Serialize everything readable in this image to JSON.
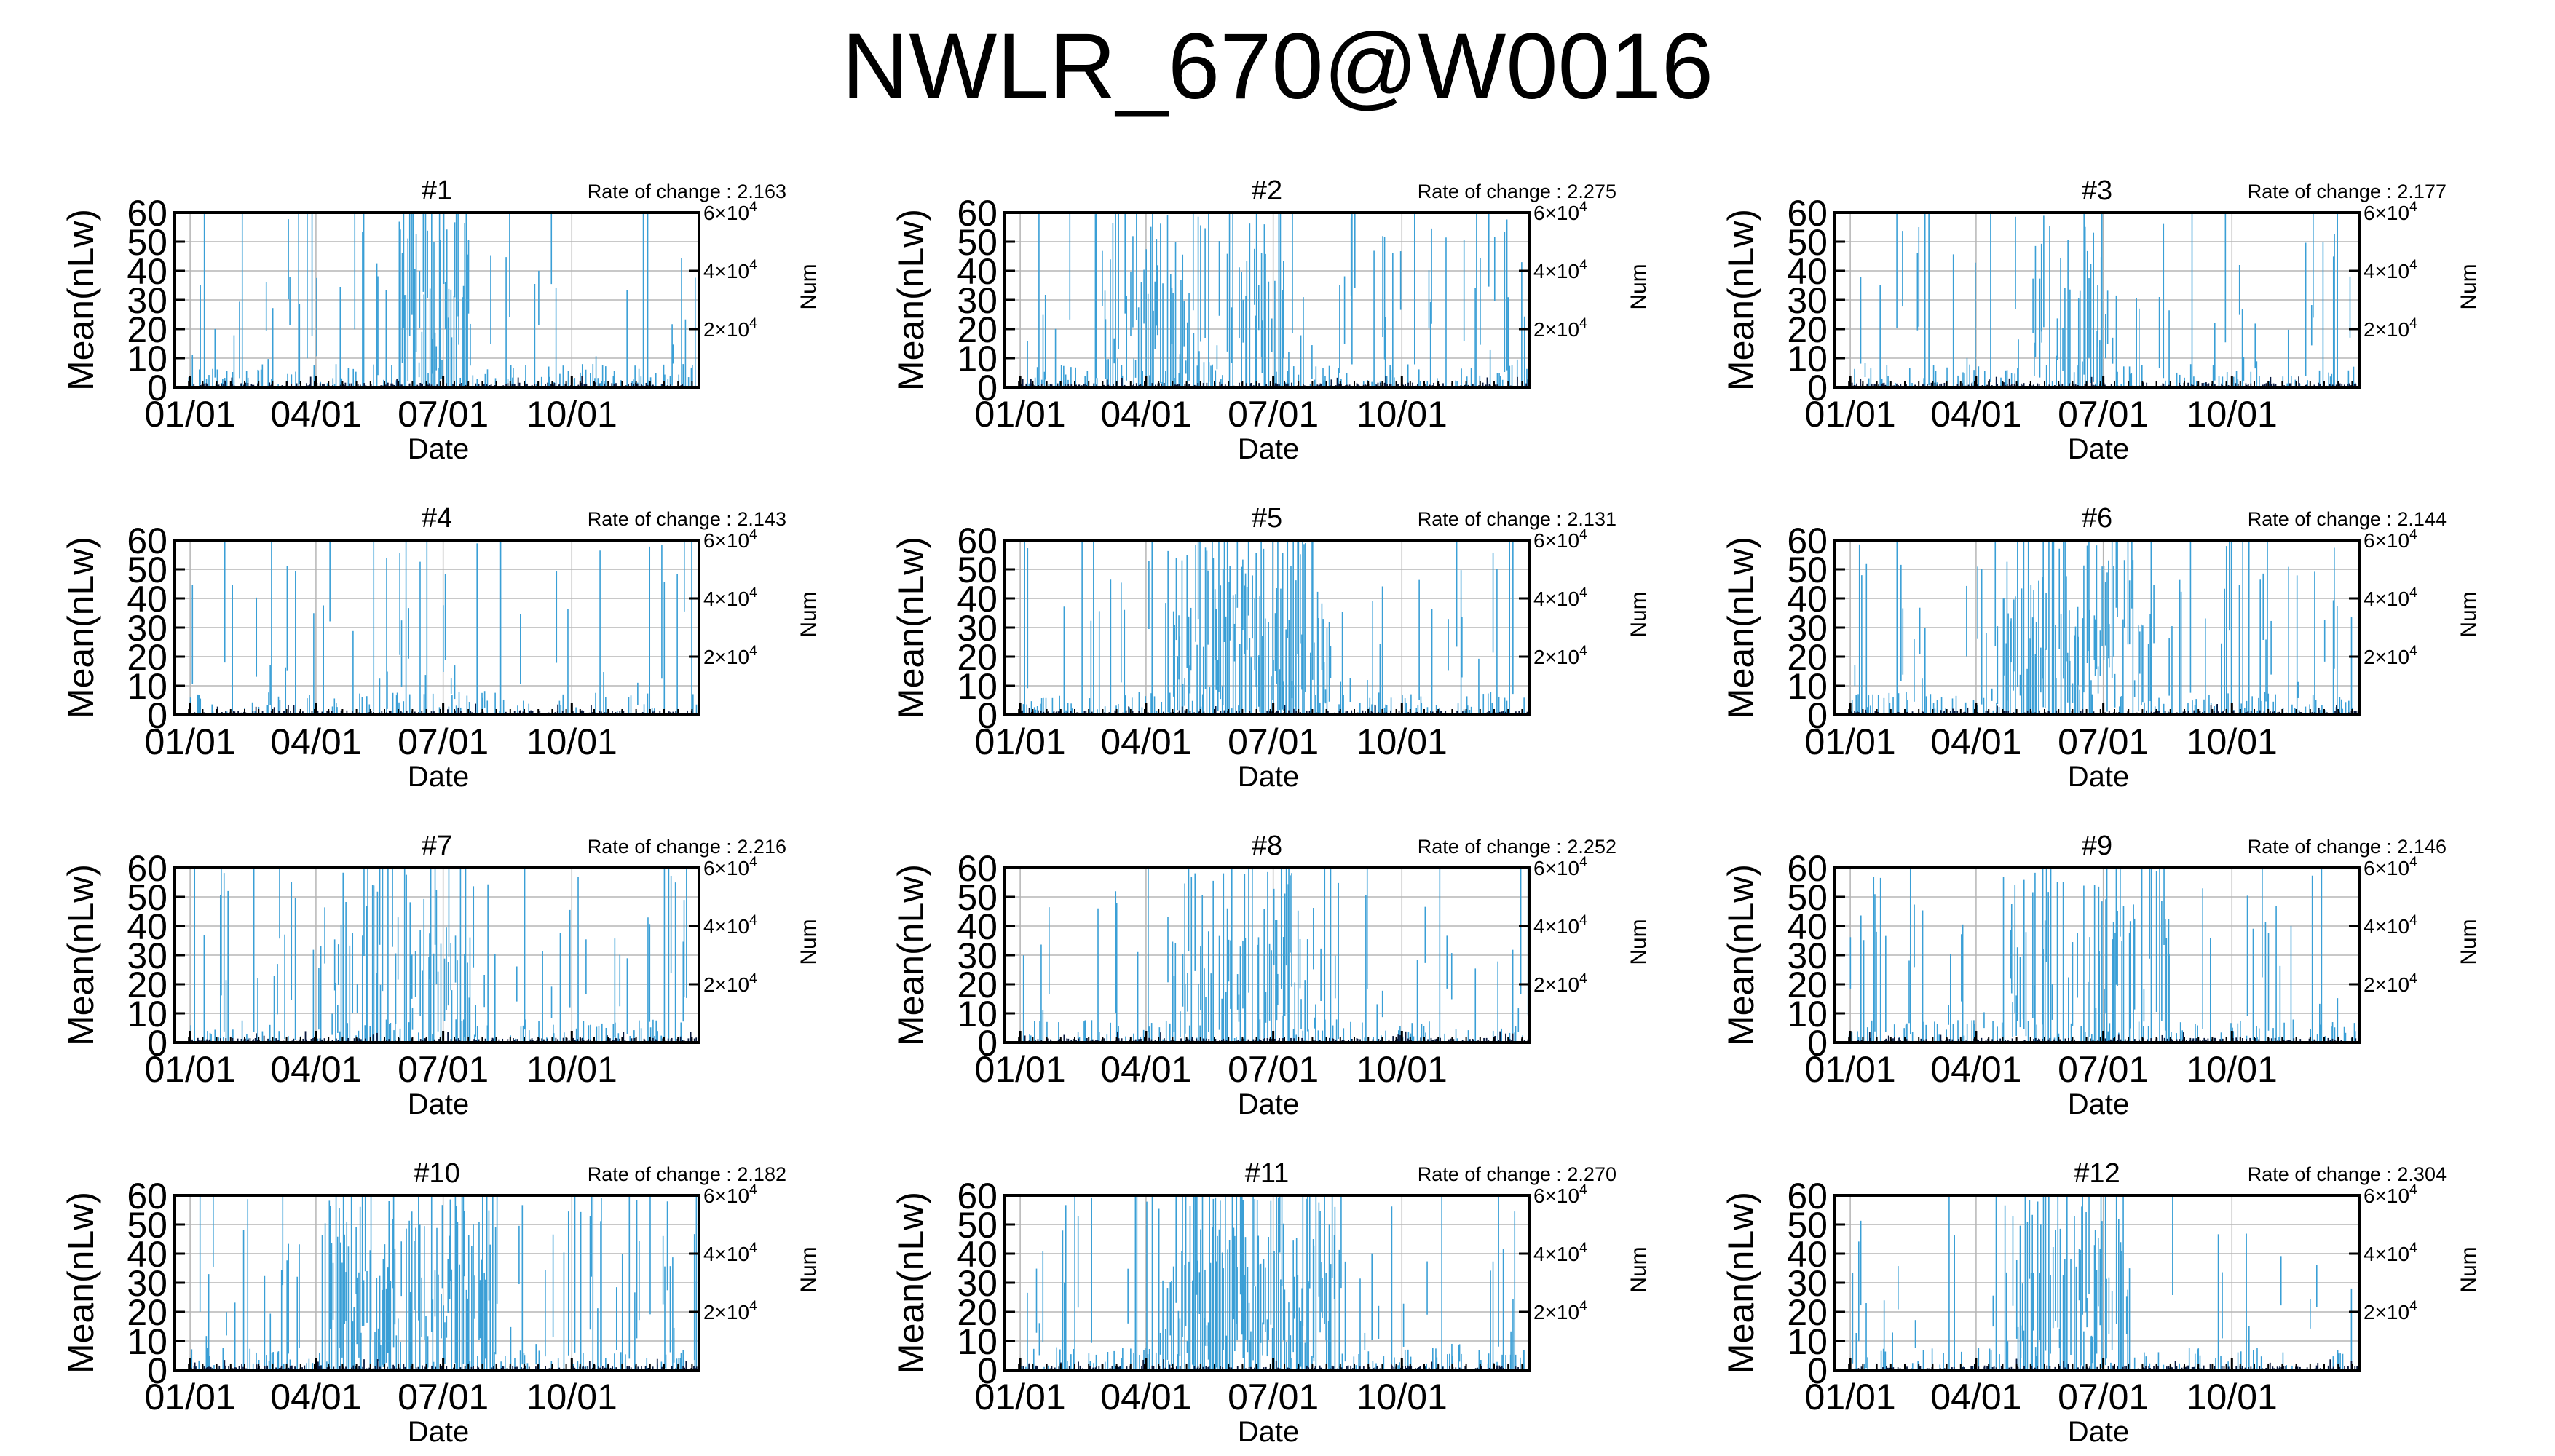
{
  "title": "NWLR_670@W0016",
  "colors": {
    "mean_line": "#3a9fd6",
    "num_line": "#0a1a40",
    "grid": "#b5b5b5",
    "axis": "#000000"
  },
  "axes": {
    "xlabel": "Date",
    "ylabel_left": "Mean(nLw)",
    "ylabel_right": "Num",
    "yticks_left": [
      "0",
      "10",
      "20",
      "30",
      "40",
      "50",
      "60"
    ],
    "ylim_left": [
      0,
      60
    ],
    "yticks_right": [
      {
        "value": 20000,
        "base": "2×10",
        "exp": "4"
      },
      {
        "value": 40000,
        "base": "4×10",
        "exp": "4"
      },
      {
        "value": 60000,
        "base": "6×10",
        "exp": "4"
      }
    ],
    "ylim_right": [
      0,
      60000
    ],
    "xticks": [
      {
        "label": "01/01",
        "day": 1
      },
      {
        "label": "04/01",
        "day": 91
      },
      {
        "label": "07/01",
        "day": 182
      },
      {
        "label": "10/01",
        "day": 274
      }
    ],
    "xlim_days": [
      -10,
      365
    ],
    "rate_prefix": "Rate of change : "
  },
  "chart_data": [
    {
      "type": "bar",
      "name": "#1",
      "rate": "2.163",
      "seed": 11,
      "dense": [
        150,
        200
      ],
      "density": 0.9,
      "sparse": 0.14,
      "low": 0.35
    },
    {
      "type": "bar",
      "name": "#2",
      "rate": "2.275",
      "seed": 23,
      "dense": [
        60,
        190
      ],
      "density": 0.55,
      "sparse": 0.18,
      "low": 0.3
    },
    {
      "type": "bar",
      "name": "#3",
      "rate": "2.177",
      "seed": 37,
      "dense": [
        130,
        200
      ],
      "density": 0.6,
      "sparse": 0.12,
      "low": 0.25
    },
    {
      "type": "bar",
      "name": "#4",
      "rate": "2.143",
      "seed": 41,
      "dense": [
        150,
        190
      ],
      "density": 0.35,
      "sparse": 0.1,
      "low": 0.2
    },
    {
      "type": "bar",
      "name": "#5",
      "rate": "2.131",
      "seed": 53,
      "dense": [
        110,
        220
      ],
      "density": 0.9,
      "sparse": 0.16,
      "low": 0.3
    },
    {
      "type": "bar",
      "name": "#6",
      "rate": "2.144",
      "seed": 67,
      "dense": [
        110,
        210
      ],
      "density": 0.8,
      "sparse": 0.14,
      "low": 0.3
    },
    {
      "type": "bar",
      "name": "#7",
      "rate": "2.216",
      "seed": 71,
      "dense": [
        100,
        200
      ],
      "density": 0.6,
      "sparse": 0.16,
      "low": 0.3
    },
    {
      "type": "bar",
      "name": "#8",
      "rate": "2.252",
      "seed": 83,
      "dense": [
        110,
        230
      ],
      "density": 0.55,
      "sparse": 0.12,
      "low": 0.25
    },
    {
      "type": "bar",
      "name": "#9",
      "rate": "2.146",
      "seed": 97,
      "dense": [
        110,
        230
      ],
      "density": 0.55,
      "sparse": 0.14,
      "low": 0.3
    },
    {
      "type": "bar",
      "name": "#10",
      "rate": "2.182",
      "seed": 101,
      "dense": [
        100,
        220
      ],
      "density": 0.8,
      "sparse": 0.16,
      "low": 0.3
    },
    {
      "type": "bar",
      "name": "#11",
      "rate": "2.270",
      "seed": 113,
      "dense": [
        100,
        230
      ],
      "density": 0.9,
      "sparse": 0.14,
      "low": 0.3
    },
    {
      "type": "bar",
      "name": "#12",
      "rate": "2.304",
      "seed": 127,
      "dense": [
        120,
        200
      ],
      "density": 0.7,
      "sparse": 0.1,
      "low": 0.25
    }
  ]
}
